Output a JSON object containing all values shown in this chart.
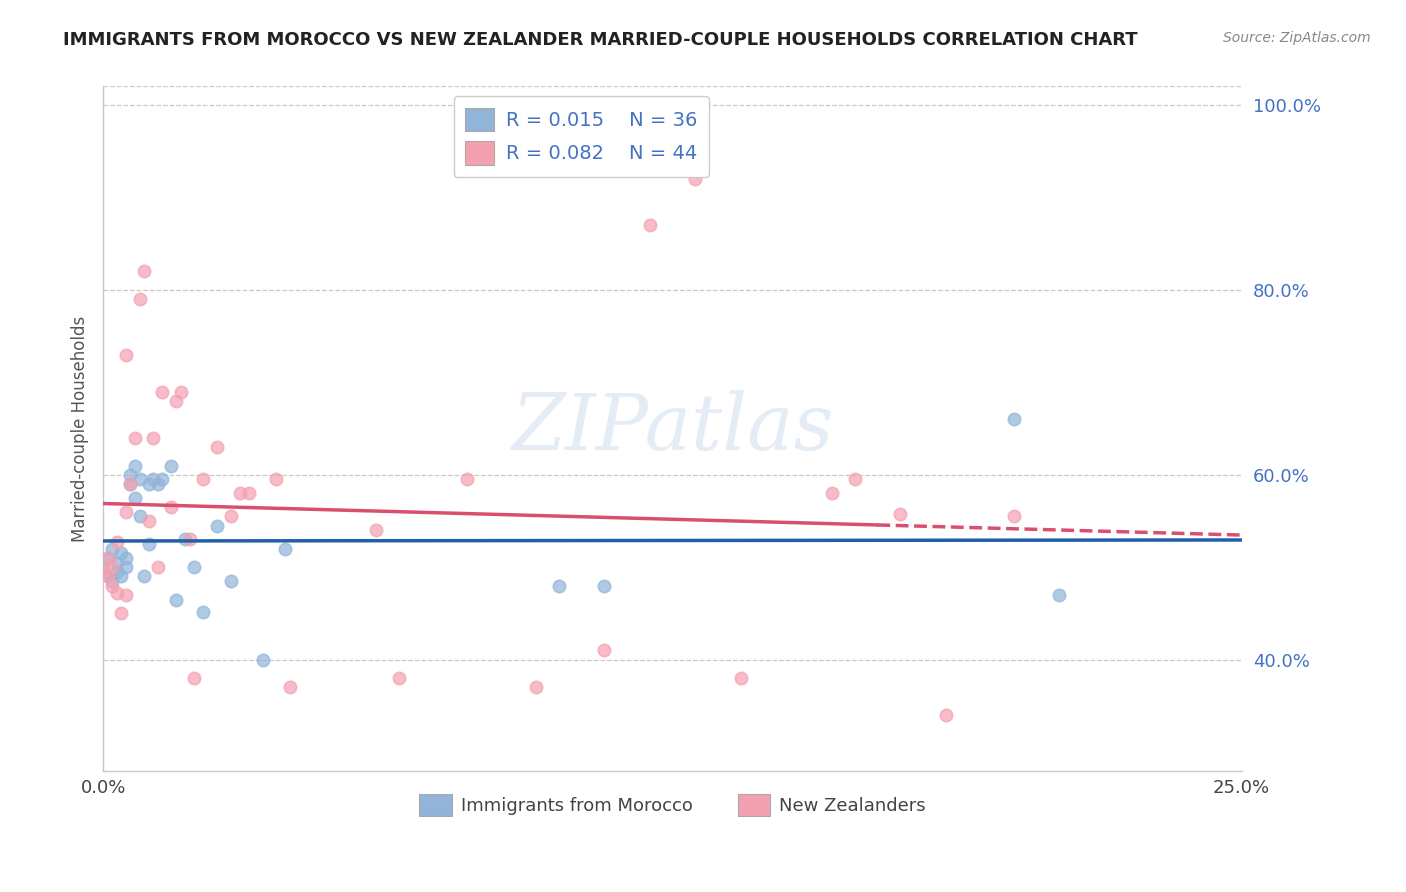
{
  "title": "IMMIGRANTS FROM MOROCCO VS NEW ZEALANDER MARRIED-COUPLE HOUSEHOLDS CORRELATION CHART",
  "source": "Source: ZipAtlas.com",
  "xlabel_blue": "Immigrants from Morocco",
  "xlabel_pink": "New Zealanders",
  "ylabel": "Married-couple Households",
  "xmin": 0.0,
  "xmax": 0.25,
  "ymin": 0.28,
  "ymax": 1.02,
  "yticks": [
    0.4,
    0.6,
    0.8,
    1.0
  ],
  "ytick_labels": [
    "40.0%",
    "60.0%",
    "80.0%",
    "100.0%"
  ],
  "xticks": [
    0.0,
    0.25
  ],
  "xtick_labels": [
    "0.0%",
    "25.0%"
  ],
  "blue_color": "#91b4d8",
  "pink_color": "#f4a0b0",
  "line_blue_color": "#2060a8",
  "line_pink_color": "#d94f6e",
  "watermark": "ZIPatlas",
  "blue_scatter_x": [
    0.0,
    0.001,
    0.001,
    0.002,
    0.002,
    0.003,
    0.003,
    0.004,
    0.004,
    0.005,
    0.005,
    0.006,
    0.006,
    0.007,
    0.007,
    0.008,
    0.008,
    0.009,
    0.01,
    0.01,
    0.011,
    0.012,
    0.013,
    0.015,
    0.016,
    0.018,
    0.02,
    0.022,
    0.025,
    0.028,
    0.035,
    0.04,
    0.1,
    0.11,
    0.2,
    0.21
  ],
  "blue_scatter_y": [
    0.5,
    0.51,
    0.49,
    0.52,
    0.485,
    0.505,
    0.495,
    0.49,
    0.515,
    0.5,
    0.51,
    0.59,
    0.6,
    0.61,
    0.575,
    0.595,
    0.555,
    0.49,
    0.59,
    0.525,
    0.595,
    0.59,
    0.595,
    0.61,
    0.465,
    0.53,
    0.5,
    0.452,
    0.545,
    0.485,
    0.4,
    0.52,
    0.48,
    0.48,
    0.66,
    0.47
  ],
  "pink_scatter_x": [
    0.0,
    0.001,
    0.001,
    0.002,
    0.002,
    0.003,
    0.003,
    0.004,
    0.005,
    0.005,
    0.005,
    0.006,
    0.007,
    0.008,
    0.009,
    0.01,
    0.011,
    0.012,
    0.013,
    0.015,
    0.016,
    0.017,
    0.019,
    0.02,
    0.022,
    0.025,
    0.028,
    0.03,
    0.032,
    0.038,
    0.041,
    0.06,
    0.065,
    0.08,
    0.095,
    0.11,
    0.12,
    0.13,
    0.14,
    0.16,
    0.165,
    0.175,
    0.185,
    0.2
  ],
  "pink_scatter_y": [
    0.495,
    0.49,
    0.51,
    0.48,
    0.5,
    0.472,
    0.527,
    0.45,
    0.47,
    0.56,
    0.73,
    0.59,
    0.64,
    0.79,
    0.82,
    0.55,
    0.64,
    0.5,
    0.69,
    0.565,
    0.68,
    0.69,
    0.53,
    0.38,
    0.595,
    0.63,
    0.555,
    0.58,
    0.58,
    0.595,
    0.37,
    0.54,
    0.38,
    0.595,
    0.37,
    0.41,
    0.87,
    0.92,
    0.38,
    0.58,
    0.595,
    0.558,
    0.34,
    0.555
  ]
}
